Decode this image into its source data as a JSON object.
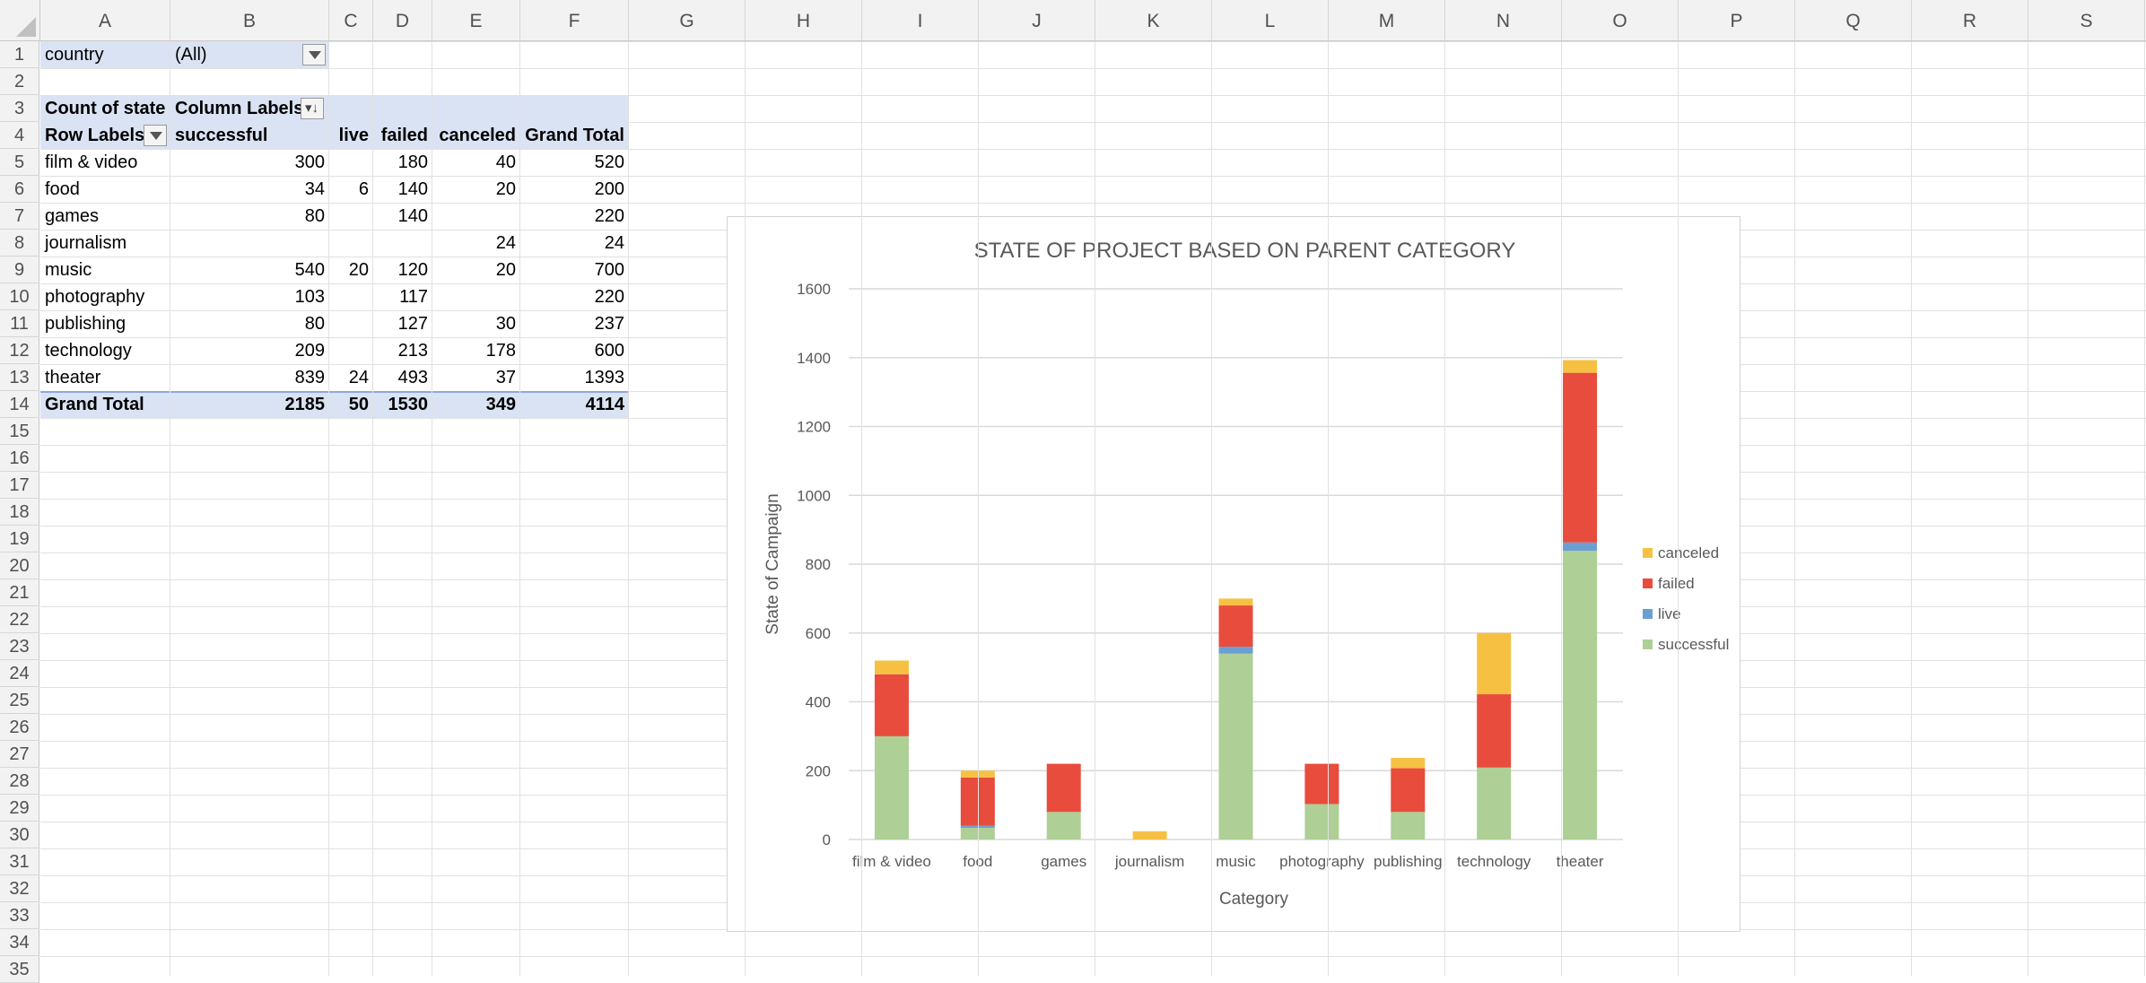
{
  "columns": [
    "A",
    "B",
    "C",
    "D",
    "E",
    "F",
    "G",
    "H",
    "I",
    "J",
    "K",
    "L",
    "M",
    "N",
    "O",
    "P",
    "Q",
    "R",
    "S"
  ],
  "rows": [
    "1",
    "2",
    "3",
    "4",
    "5",
    "6",
    "7",
    "8",
    "9",
    "10",
    "11",
    "12",
    "13",
    "14",
    "15",
    "16",
    "17",
    "18",
    "19",
    "20",
    "21",
    "22",
    "23",
    "24",
    "25",
    "26",
    "27",
    "28",
    "29",
    "30",
    "31",
    "32",
    "33",
    "34",
    "35"
  ],
  "pivot": {
    "filter_label": "country",
    "filter_value": "(All)",
    "count_label": "Count of state",
    "column_labels": "Column Labels",
    "row_labels": "Row Labels",
    "headers": [
      "successful",
      "live",
      "failed",
      "canceled",
      "Grand Total"
    ],
    "body": [
      [
        "film & video",
        "300",
        "",
        "180",
        "40",
        "520"
      ],
      [
        "food",
        "34",
        "6",
        "140",
        "20",
        "200"
      ],
      [
        "games",
        "80",
        "",
        "140",
        "",
        "220"
      ],
      [
        "journalism",
        "",
        "",
        "",
        "24",
        "24"
      ],
      [
        "music",
        "540",
        "20",
        "120",
        "20",
        "700"
      ],
      [
        "photography",
        "103",
        "",
        "117",
        "",
        "220"
      ],
      [
        "publishing",
        "80",
        "",
        "127",
        "30",
        "237"
      ],
      [
        "technology",
        "209",
        "",
        "213",
        "178",
        "600"
      ],
      [
        "theater",
        "839",
        "24",
        "493",
        "37",
        "1393"
      ]
    ],
    "grand_total": [
      "Grand Total",
      "2185",
      "50",
      "1530",
      "349",
      "4114"
    ]
  },
  "chart_data": {
    "type": "bar",
    "stacked": true,
    "title": "STATE OF PROJECT BASED ON PARENT CATEGORY",
    "xlabel": "Category",
    "ylabel": "State of Campaign",
    "ylim": [
      0,
      1600
    ],
    "yticks": [
      0,
      200,
      400,
      600,
      800,
      1000,
      1200,
      1400,
      1600
    ],
    "grid": true,
    "legend_position": "right",
    "categories": [
      "film & video",
      "food",
      "games",
      "journalism",
      "music",
      "photography",
      "publishing",
      "technology",
      "theater"
    ],
    "series": [
      {
        "name": "successful",
        "color": "#aecf95",
        "values": [
          300,
          34,
          80,
          0,
          540,
          103,
          80,
          209,
          839
        ]
      },
      {
        "name": "live",
        "color": "#6a9fd4",
        "values": [
          0,
          6,
          0,
          0,
          20,
          0,
          0,
          0,
          24
        ]
      },
      {
        "name": "failed",
        "color": "#e84c3d",
        "values": [
          180,
          140,
          140,
          0,
          120,
          117,
          127,
          213,
          493
        ]
      },
      {
        "name": "canceled",
        "color": "#f6c143",
        "values": [
          40,
          20,
          0,
          24,
          20,
          0,
          30,
          178,
          37
        ]
      }
    ],
    "legend_order": [
      "canceled",
      "failed",
      "live",
      "successful"
    ]
  }
}
